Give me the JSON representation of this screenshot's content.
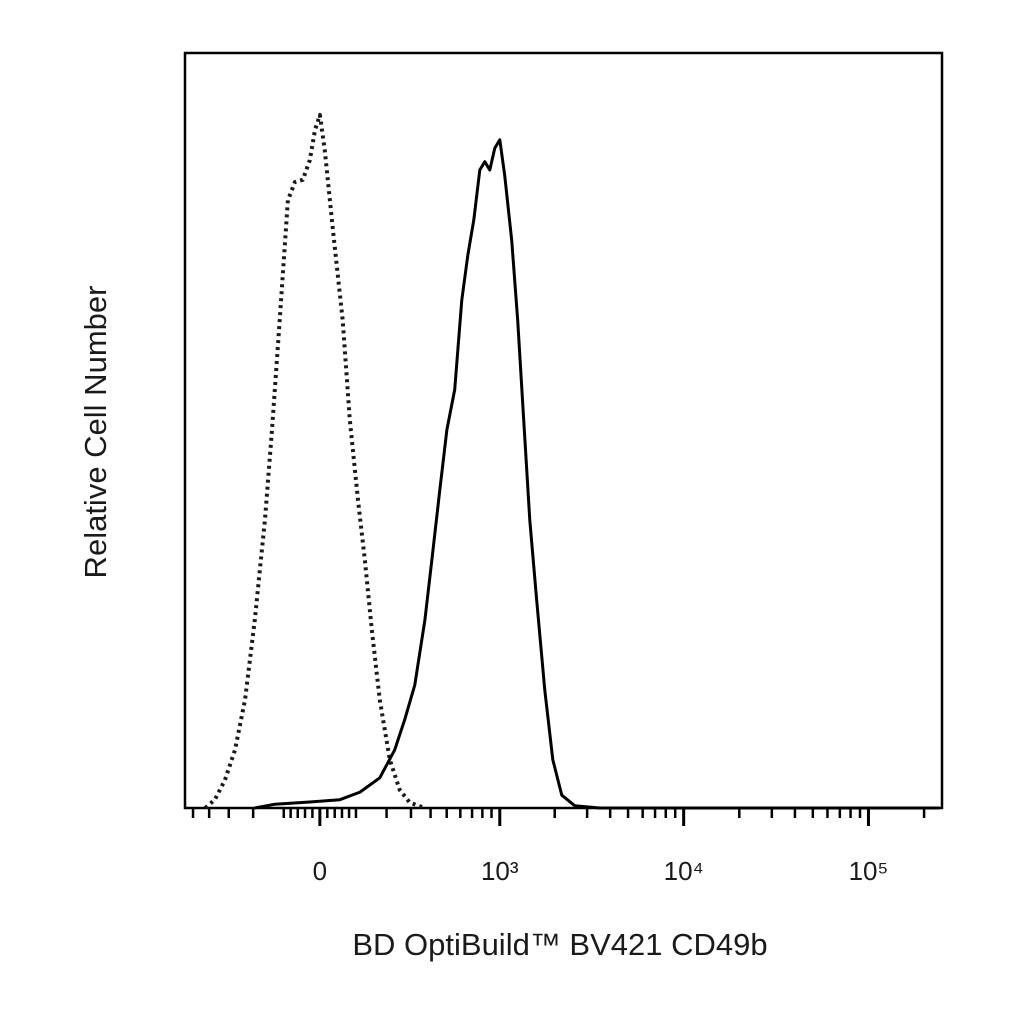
{
  "chart_data": {
    "type": "line",
    "xlabel": "BD OptiBuild™ BV421 CD49b",
    "ylabel": "Relative Cell Number",
    "xscale": "biexponential",
    "xlim": [
      -557,
      250000
    ],
    "ylim": [
      0,
      100
    ],
    "xticks": [
      0,
      {
        "value": 1000,
        "label": "10³"
      },
      {
        "value": 10000,
        "label": "10⁴"
      },
      {
        "value": 100000,
        "label": "10⁵"
      }
    ],
    "xminor_ticks": [
      -500,
      -400,
      -300,
      -200,
      -100,
      -80,
      -60,
      -40,
      -20,
      20,
      40,
      60,
      80,
      100,
      200,
      300,
      400,
      500,
      600,
      700,
      800,
      900,
      2000,
      3000,
      4000,
      5000,
      6000,
      7000,
      8000,
      9000,
      20000,
      30000,
      40000,
      50000,
      60000,
      70000,
      80000,
      90000,
      200000
    ],
    "series": [
      {
        "style": "dotted",
        "color": "#1a1a1a",
        "x": [
          -423,
          -369,
          -318,
          -272,
          -231,
          -194,
          -159,
          -136,
          -112,
          -88,
          -68,
          -46,
          -27,
          -13,
          0,
          13,
          35,
          62,
          82,
          106,
          127,
          149,
          176,
          212,
          251,
          295,
          369
        ],
        "values": [
          0,
          1.1,
          3.7,
          7.7,
          14.3,
          24.9,
          38.1,
          50.1,
          64.6,
          80.5,
          82.9,
          83.2,
          85.8,
          89.8,
          91.8,
          87.2,
          76.6,
          64.6,
          51.4,
          40.8,
          32.8,
          23.6,
          14.3,
          6.4,
          2.4,
          0.7,
          0
        ]
      },
      {
        "style": "solid",
        "color": "#000000",
        "x": [
          -194,
          -127,
          -27,
          54,
          112,
          176,
          231,
          272,
          318,
          369,
          407,
          455,
          501,
          557,
          612,
          662,
          716,
          774,
          826,
          880,
          938,
          1000,
          1065,
          1164,
          1256,
          1355,
          1462,
          1595,
          1765,
          1952,
          2185,
          2569,
          3511,
          242000
        ],
        "values": [
          0,
          0.5,
          0.8,
          1.1,
          2.1,
          4.0,
          7.7,
          11.7,
          16.3,
          24.9,
          32.8,
          42.1,
          50.1,
          55.4,
          67.3,
          73.2,
          77.9,
          84.5,
          85.6,
          84.5,
          87.4,
          88.5,
          83.8,
          75.2,
          64.6,
          51.4,
          38.1,
          27.5,
          15.6,
          6.4,
          1.7,
          0.3,
          0,
          0
        ]
      }
    ]
  }
}
